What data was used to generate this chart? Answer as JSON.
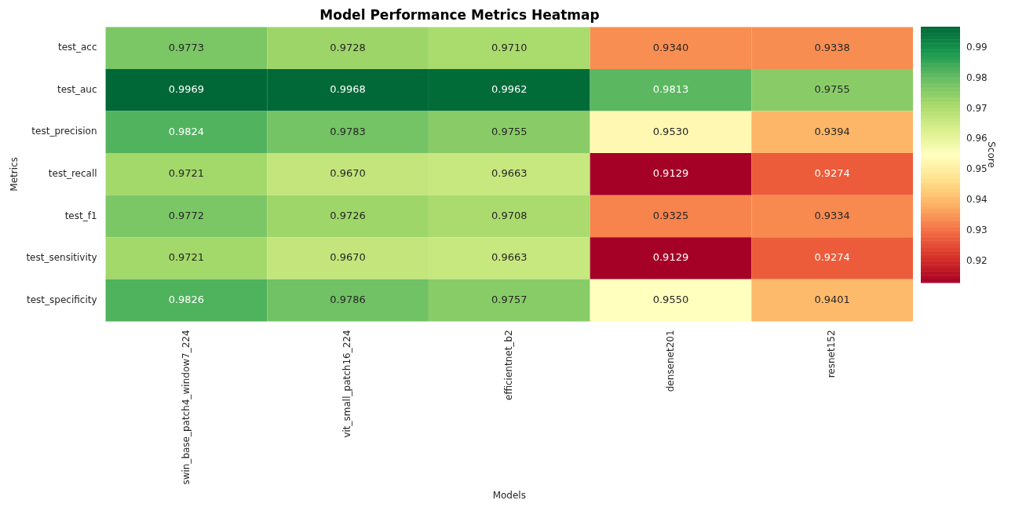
{
  "chart_data": {
    "type": "heatmap",
    "title": "Model Performance Metrics Heatmap",
    "xlabel": "Models",
    "ylabel": "Metrics",
    "clabel": "Score",
    "categories": [
      "swin_base_patch4_window7_224",
      "vit_small_patch16_224",
      "efficientnet_b2",
      "densenet201",
      "resnet152"
    ],
    "y_categories": [
      "test_acc",
      "test_auc",
      "test_precision",
      "test_recall",
      "test_f1",
      "test_sensitivity",
      "test_specificity"
    ],
    "cells": [
      [
        0.9773,
        0.9728,
        0.971,
        0.934,
        0.9338
      ],
      [
        0.9969,
        0.9968,
        0.9962,
        0.9813,
        0.9755
      ],
      [
        0.9824,
        0.9783,
        0.9755,
        0.953,
        0.9394
      ],
      [
        0.9721,
        0.967,
        0.9663,
        0.9129,
        0.9274
      ],
      [
        0.9772,
        0.9726,
        0.9708,
        0.9325,
        0.9334
      ],
      [
        0.9721,
        0.967,
        0.9663,
        0.9129,
        0.9274
      ],
      [
        0.9826,
        0.9786,
        0.9757,
        0.955,
        0.9401
      ]
    ],
    "cell_labels": [
      [
        "0.9773",
        "0.9728",
        "0.9710",
        "0.9340",
        "0.9338"
      ],
      [
        "0.9969",
        "0.9968",
        "0.9962",
        "0.9813",
        "0.9755"
      ],
      [
        "0.9824",
        "0.9783",
        "0.9755",
        "0.9530",
        "0.9394"
      ],
      [
        "0.9721",
        "0.9670",
        "0.9663",
        "0.9129",
        "0.9274"
      ],
      [
        "0.9772",
        "0.9726",
        "0.9708",
        "0.9325",
        "0.9334"
      ],
      [
        "0.9721",
        "0.9670",
        "0.9663",
        "0.9129",
        "0.9274"
      ],
      [
        "0.9826",
        "0.9786",
        "0.9757",
        "0.9550",
        "0.9401"
      ]
    ],
    "clim": [
      0.9129,
      0.9969
    ],
    "cticks": [
      0.92,
      0.93,
      0.94,
      0.95,
      0.96,
      0.97,
      0.98,
      0.99
    ]
  }
}
